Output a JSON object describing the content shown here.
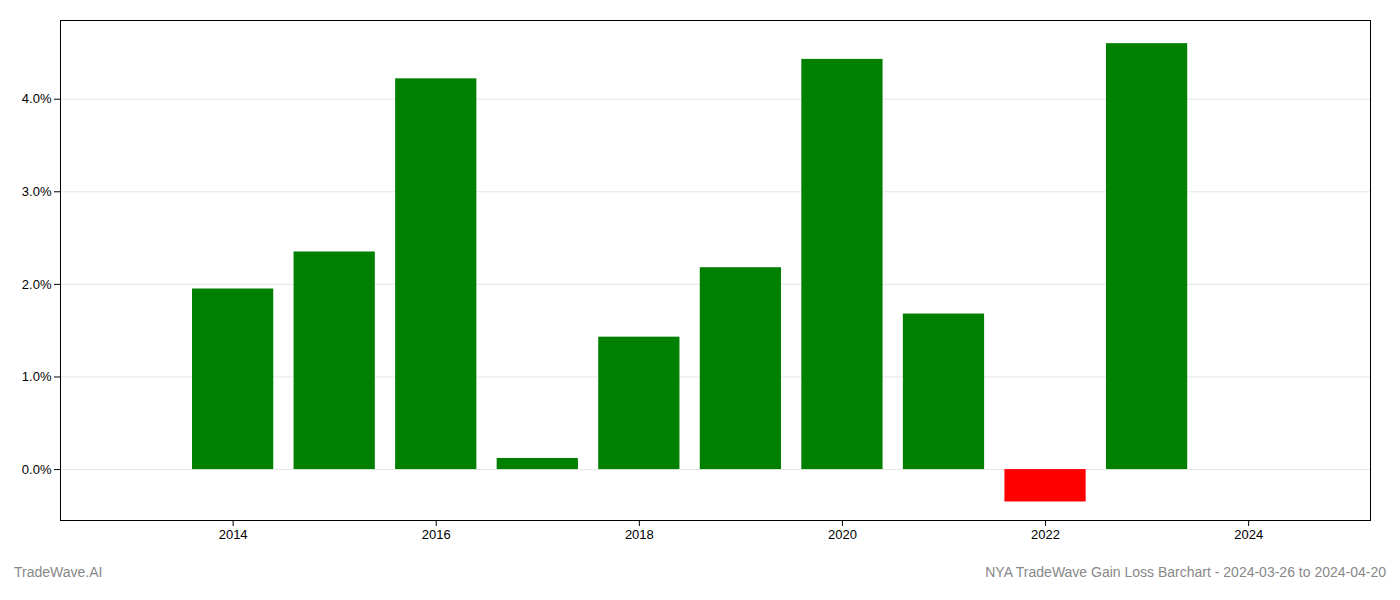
{
  "chart_data": {
    "type": "bar",
    "x": [
      2014,
      2015,
      2016,
      2017,
      2018,
      2019,
      2020,
      2021,
      2022,
      2023
    ],
    "values": [
      1.95,
      2.35,
      4.22,
      0.12,
      1.43,
      2.18,
      4.43,
      1.68,
      -0.35,
      4.6
    ],
    "colors": [
      "#008000",
      "#008000",
      "#008000",
      "#008000",
      "#008000",
      "#008000",
      "#008000",
      "#008000",
      "#ff0000",
      "#008000"
    ],
    "xlim": [
      2012.3,
      2025.2
    ],
    "xticks": [
      2014,
      2016,
      2018,
      2020,
      2022,
      2024
    ],
    "ylim": [
      -0.55,
      4.85
    ],
    "yticks": [
      {
        "value": 0.0,
        "label": "0.0%"
      },
      {
        "value": 1.0,
        "label": "1.0%"
      },
      {
        "value": 2.0,
        "label": "2.0%"
      },
      {
        "value": 3.0,
        "label": "3.0%"
      },
      {
        "value": 4.0,
        "label": "4.0%"
      }
    ],
    "grid": true,
    "annotations": [
      "TradeWave.AI",
      "NYA TradeWave Gain Loss Barchart - 2024-03-26 to 2024-04-20"
    ]
  }
}
